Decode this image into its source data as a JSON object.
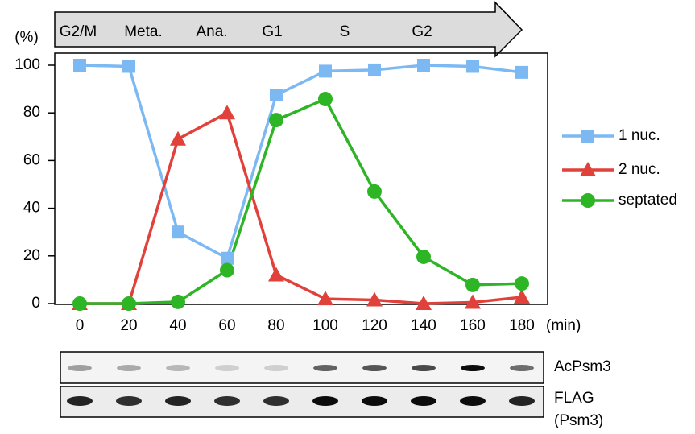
{
  "chart_data": {
    "type": "line",
    "phases": [
      "G2/M",
      "Meta.",
      "Ana.",
      "G1",
      "S",
      "G2"
    ],
    "y_label": "(%)",
    "x_label": "(min)",
    "x": [
      0,
      20,
      40,
      60,
      80,
      100,
      120,
      140,
      160,
      180
    ],
    "xlim": [
      0,
      180
    ],
    "xticks": [
      0,
      20,
      40,
      60,
      80,
      100,
      120,
      140,
      160,
      180
    ],
    "ylim": [
      0,
      100
    ],
    "yticks": [
      0,
      20,
      40,
      60,
      80,
      100
    ],
    "legend": "right",
    "series": [
      {
        "name": "1 nuc.",
        "color": "#7cb9f2",
        "marker": "square",
        "values": [
          100,
          99.5,
          30,
          19,
          87.5,
          97.5,
          98,
          100,
          99.5,
          97
        ]
      },
      {
        "name": "2 nuc.",
        "color": "#e0413a",
        "marker": "triangle",
        "values": [
          0,
          0,
          69,
          80,
          12,
          2,
          1.5,
          0,
          0.5,
          2.7
        ]
      },
      {
        "name": "septated",
        "color": "#2db526",
        "marker": "circle",
        "values": [
          0,
          0,
          0.7,
          14,
          77,
          85.8,
          47,
          19.6,
          7.8,
          8.4
        ]
      }
    ],
    "blot_labels": [
      "AcPsm3",
      "FLAG",
      "(Psm3)"
    ]
  }
}
